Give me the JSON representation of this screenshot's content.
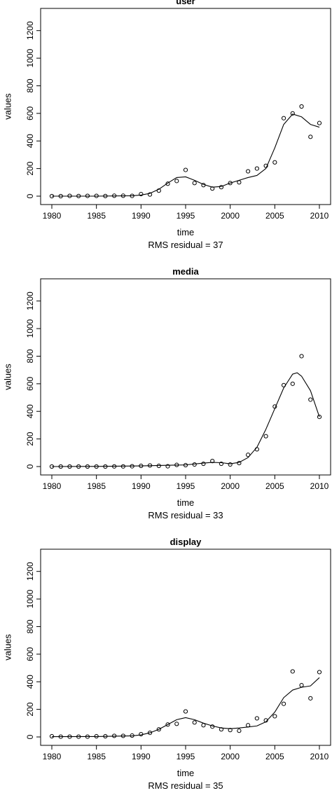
{
  "chart_data": [
    {
      "type": "scatter",
      "title": "user",
      "xlabel": "time",
      "ylabel": "values",
      "caption": "RMS residual = 37",
      "xlim": [
        1980,
        2010
      ],
      "ylim": [
        0,
        1300
      ],
      "xticks": [
        1980,
        1985,
        1990,
        1995,
        2000,
        2005,
        2010
      ],
      "yticks": [
        0,
        200,
        400,
        600,
        800,
        1000,
        1200
      ],
      "grid": false,
      "series": [
        {
          "style": "points",
          "x": [
            1980,
            1981,
            1982,
            1983,
            1984,
            1985,
            1986,
            1987,
            1988,
            1989,
            1990,
            1991,
            1992,
            1993,
            1994,
            1995,
            1996,
            1997,
            1998,
            1999,
            2000,
            2001,
            2002,
            2003,
            2004,
            2005,
            2006,
            2007,
            2008,
            2009,
            2010
          ],
          "y": [
            0,
            0,
            2,
            1,
            2,
            2,
            1,
            3,
            3,
            2,
            15,
            12,
            40,
            90,
            110,
            190,
            95,
            80,
            55,
            65,
            95,
            100,
            180,
            200,
            220,
            245,
            565,
            600,
            650,
            430,
            530
          ]
        },
        {
          "style": "line",
          "x": [
            1980,
            1985,
            1989,
            1990,
            1991,
            1992,
            1993,
            1994,
            1995,
            1996,
            1997,
            1998,
            1999,
            2000,
            2001,
            2002,
            2003,
            2004,
            2005,
            2006,
            2007,
            2008,
            2009,
            2010
          ],
          "y": [
            0,
            0,
            3,
            8,
            20,
            50,
            95,
            135,
            140,
            115,
            85,
            65,
            70,
            95,
            115,
            135,
            150,
            200,
            350,
            520,
            595,
            575,
            520,
            500
          ]
        }
      ]
    },
    {
      "type": "scatter",
      "title": "media",
      "xlabel": "time",
      "ylabel": "values",
      "caption": "RMS residual = 33",
      "xlim": [
        1980,
        2010
      ],
      "ylim": [
        0,
        1300
      ],
      "xticks": [
        1980,
        1985,
        1990,
        1995,
        2000,
        2005,
        2010
      ],
      "yticks": [
        0,
        200,
        400,
        600,
        800,
        1000,
        1200
      ],
      "grid": false,
      "series": [
        {
          "style": "points",
          "x": [
            1980,
            1981,
            1982,
            1983,
            1984,
            1985,
            1986,
            1987,
            1988,
            1989,
            1990,
            1991,
            1992,
            1993,
            1994,
            1995,
            1996,
            1997,
            1998,
            1999,
            2000,
            2001,
            2002,
            2003,
            2004,
            2005,
            2006,
            2007,
            2008,
            2009,
            2010
          ],
          "y": [
            0,
            0,
            0,
            0,
            0,
            0,
            0,
            1,
            1,
            2,
            5,
            8,
            5,
            2,
            12,
            10,
            15,
            20,
            40,
            20,
            15,
            25,
            85,
            125,
            220,
            435,
            590,
            600,
            800,
            485,
            360
          ]
        },
        {
          "style": "line",
          "x": [
            1980,
            1985,
            1990,
            1995,
            1997,
            1998,
            1999,
            2000,
            2001,
            2002,
            2003,
            2004,
            2005,
            2006,
            2007,
            2007.5,
            2008,
            2009,
            2010
          ],
          "y": [
            0,
            1,
            5,
            12,
            25,
            30,
            28,
            20,
            30,
            65,
            140,
            270,
            420,
            570,
            670,
            680,
            655,
            550,
            360
          ]
        }
      ]
    },
    {
      "type": "scatter",
      "title": "display",
      "xlabel": "time",
      "ylabel": "values",
      "caption": "RMS residual = 35",
      "xlim": [
        1980,
        2010
      ],
      "ylim": [
        0,
        1300
      ],
      "xticks": [
        1980,
        1985,
        1990,
        1995,
        2000,
        2005,
        2010
      ],
      "yticks": [
        0,
        200,
        400,
        600,
        800,
        1000,
        1200
      ],
      "grid": false,
      "series": [
        {
          "style": "points",
          "x": [
            1980,
            1981,
            1982,
            1983,
            1984,
            1985,
            1986,
            1987,
            1988,
            1989,
            1990,
            1991,
            1992,
            1993,
            1994,
            1995,
            1996,
            1997,
            1998,
            1999,
            2000,
            2001,
            2002,
            2003,
            2004,
            2005,
            2006,
            2007,
            2008,
            2009,
            2010
          ],
          "y": [
            5,
            2,
            2,
            2,
            2,
            5,
            5,
            8,
            8,
            10,
            20,
            30,
            55,
            90,
            95,
            185,
            105,
            85,
            75,
            55,
            50,
            45,
            85,
            135,
            120,
            150,
            240,
            475,
            375,
            280,
            470
          ]
        },
        {
          "style": "line",
          "x": [
            1980,
            1985,
            1989,
            1990,
            1991,
            1992,
            1993,
            1994,
            1995,
            1996,
            1997,
            1998,
            1999,
            2000,
            2001,
            2002,
            2003,
            2004,
            2005,
            2006,
            2007,
            2008,
            2009,
            2010
          ],
          "y": [
            2,
            3,
            8,
            15,
            30,
            55,
            90,
            125,
            140,
            125,
            100,
            80,
            65,
            60,
            65,
            72,
            80,
            110,
            180,
            285,
            340,
            360,
            370,
            430
          ]
        }
      ]
    }
  ]
}
